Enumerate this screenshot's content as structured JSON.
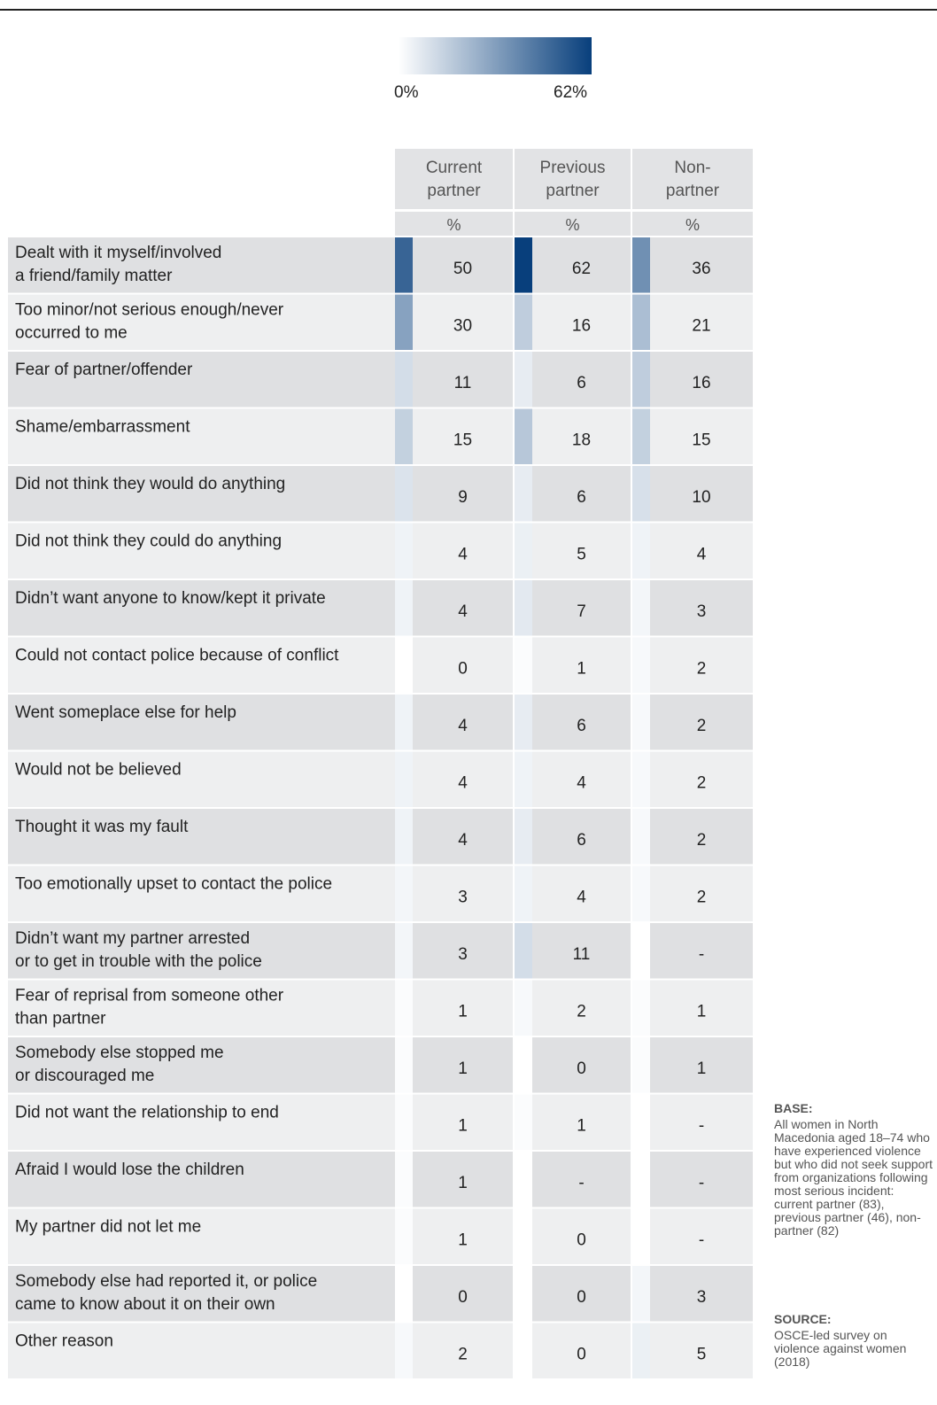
{
  "legend": {
    "min_label": "0%",
    "max_label": "62%",
    "min_value": 0,
    "max_value": 62,
    "color_low": "#ffffff",
    "color_high": "#083f7c"
  },
  "colors": {
    "row_dark": "#dfe0e2",
    "row_light": "#eeeff0",
    "header_bg": "#e2e3e5"
  },
  "chart_data": {
    "type": "heatmap",
    "columns": [
      {
        "label_lines": [
          "Current",
          "partner"
        ],
        "unit": "%"
      },
      {
        "label_lines": [
          "Previous",
          "partner"
        ],
        "unit": "%"
      },
      {
        "label_lines": [
          "Non-",
          "partner"
        ],
        "unit": "%"
      }
    ],
    "rows": [
      {
        "label_lines": [
          "Dealt with it myself/involved",
          "a friend/family matter"
        ],
        "values": [
          50,
          62,
          36
        ]
      },
      {
        "label_lines": [
          "Too minor/not serious enough/never",
          "occurred to me"
        ],
        "values": [
          30,
          16,
          21
        ]
      },
      {
        "label_lines": [
          "Fear of partner/offender"
        ],
        "values": [
          11,
          6,
          16
        ]
      },
      {
        "label_lines": [
          "Shame/embarrassment"
        ],
        "values": [
          15,
          18,
          15
        ]
      },
      {
        "label_lines": [
          "Did not think they would do anything"
        ],
        "values": [
          9,
          6,
          10
        ]
      },
      {
        "label_lines": [
          "Did not think they could do anything"
        ],
        "values": [
          4,
          5,
          4
        ]
      },
      {
        "label_lines": [
          "Didn’t want anyone to know/kept it private"
        ],
        "values": [
          4,
          7,
          3
        ]
      },
      {
        "label_lines": [
          "Could not contact police because of conflict"
        ],
        "values": [
          0,
          1,
          2
        ]
      },
      {
        "label_lines": [
          "Went someplace else for help"
        ],
        "values": [
          4,
          6,
          2
        ]
      },
      {
        "label_lines": [
          "Would not be believed"
        ],
        "values": [
          4,
          4,
          2
        ]
      },
      {
        "label_lines": [
          "Thought it was my fault"
        ],
        "values": [
          4,
          6,
          2
        ]
      },
      {
        "label_lines": [
          "Too emotionally upset to contact the police"
        ],
        "values": [
          3,
          4,
          2
        ]
      },
      {
        "label_lines": [
          "Didn’t want my partner arrested",
          "or to get in trouble with the police"
        ],
        "values": [
          3,
          11,
          "-"
        ]
      },
      {
        "label_lines": [
          "Fear of reprisal from someone other",
          "than partner"
        ],
        "values": [
          1,
          2,
          1
        ]
      },
      {
        "label_lines": [
          "Somebody else stopped me",
          "or discouraged me"
        ],
        "values": [
          1,
          0,
          1
        ]
      },
      {
        "label_lines": [
          "Did not want the relationship to end"
        ],
        "values": [
          1,
          1,
          "-"
        ]
      },
      {
        "label_lines": [
          "Afraid I would lose the children"
        ],
        "values": [
          1,
          "-",
          "-"
        ]
      },
      {
        "label_lines": [
          "My partner did not let me"
        ],
        "values": [
          1,
          0,
          "-"
        ]
      },
      {
        "label_lines": [
          "Somebody else had reported it, or police",
          "came to know about it on their own"
        ],
        "values": [
          0,
          0,
          3
        ]
      },
      {
        "label_lines": [
          "Other reason"
        ],
        "values": [
          2,
          0,
          5
        ]
      }
    ]
  },
  "notes": {
    "base_title": "BASE:",
    "base_text": "All women in North Macedonia aged 18–74 who have experienced violence but who did not seek support from organizations following most serious incident: current partner (83), previous partner (46), non-partner (82)",
    "source_title": "SOURCE:",
    "source_text": "OSCE-led survey on violence against women (2018)"
  }
}
